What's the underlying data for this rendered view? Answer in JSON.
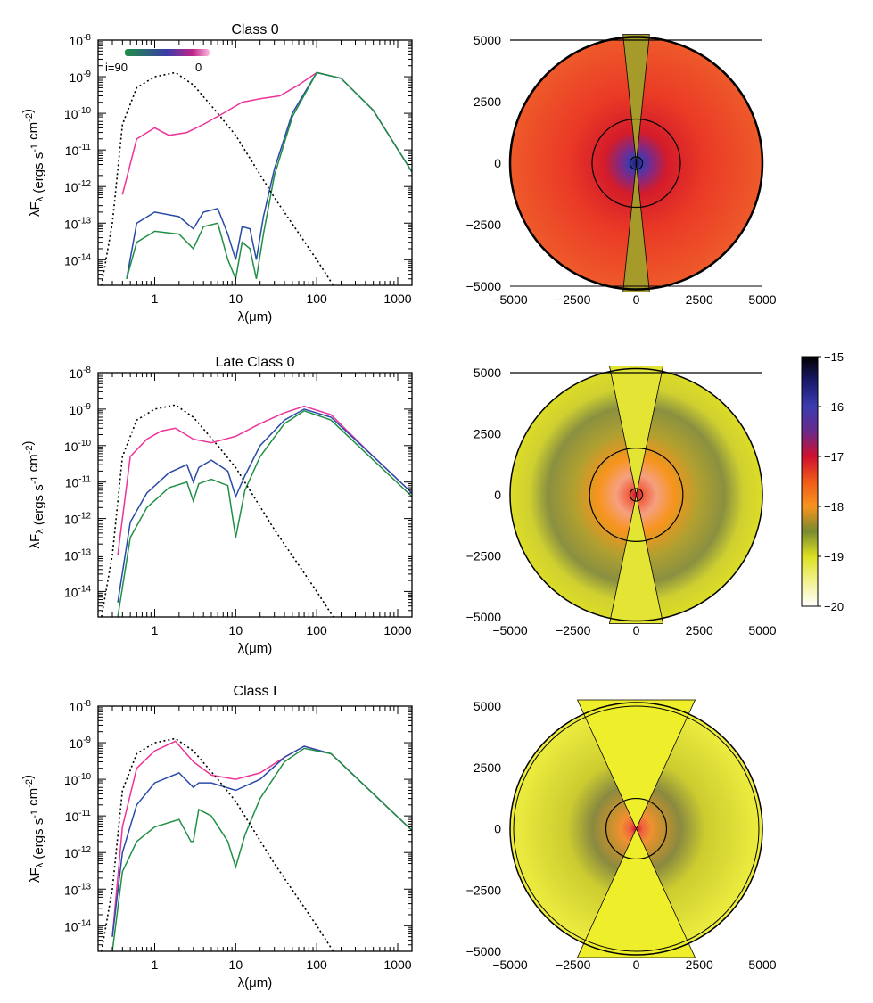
{
  "colors": {
    "pink": "#ee3399",
    "blue": "#2a4aa8",
    "green": "#1f8f45",
    "star": "#000000",
    "density_high": "#000000",
    "density_low": "#ffffff"
  },
  "chart_data": [
    {
      "type": "line",
      "title": "Class 0",
      "xlabel": "λ(μm)",
      "ylabel": "λF_λ (ergs s^-1 cm^-2)",
      "xscale": "log",
      "yscale": "log",
      "xlim": [
        0.2,
        1500
      ],
      "ylim": [
        2e-15,
        1e-08
      ],
      "xticklabels": [
        "1",
        "10",
        "100",
        "1000"
      ],
      "yticklabels": [
        "10^-8",
        "10^-9",
        "10^-10",
        "10^-11",
        "10^-12",
        "10^-13",
        "10^-14"
      ],
      "colorbar": {
        "label_left": "i=90",
        "label_right": "0"
      },
      "series": [
        {
          "color": "#ee3399",
          "x": [
            0.4,
            0.6,
            1.0,
            1.5,
            2.5,
            4.0,
            7.0,
            12.0,
            20.0,
            35.0,
            60.0,
            100.0,
            200.0,
            500.0,
            1500.0
          ],
          "y": [
            6e-13,
            2e-11,
            4e-11,
            2.5e-11,
            3e-11,
            5e-11,
            1e-10,
            2e-10,
            2.5e-10,
            3e-10,
            6e-10,
            1.3e-09,
            9e-10,
            1.2e-10,
            2.5e-12
          ]
        },
        {
          "color": "#2a4aa8",
          "x": [
            0.45,
            0.6,
            1.0,
            2.0,
            3.0,
            4.0,
            6.0,
            8.0,
            10.0,
            12.0,
            15.0,
            18.0,
            22.0,
            30.0,
            50.0,
            100.0,
            200.0,
            500.0,
            1500.0
          ],
          "y": [
            3e-15,
            1e-13,
            2e-13,
            1.5e-13,
            7e-14,
            2e-13,
            2.5e-13,
            5e-14,
            1e-14,
            8e-14,
            7e-14,
            1e-14,
            1.5e-13,
            3e-12,
            1e-10,
            1.3e-09,
            9e-10,
            1.2e-10,
            2.5e-12
          ]
        },
        {
          "color": "#1f8f45",
          "x": [
            0.45,
            0.6,
            1.0,
            2.0,
            3.0,
            4.0,
            6.0,
            8.0,
            10.0,
            12.0,
            15.0,
            18.0,
            22.0,
            30.0,
            50.0,
            100.0,
            200.0,
            500.0,
            1500.0
          ],
          "y": [
            3e-15,
            3e-14,
            6e-14,
            5e-14,
            2e-14,
            8e-14,
            1e-13,
            1e-14,
            3e-15,
            3e-14,
            2e-14,
            3e-15,
            5e-14,
            2e-12,
            8e-11,
            1.3e-09,
            9e-10,
            1.2e-10,
            2.5e-12
          ]
        },
        {
          "color": "#000000",
          "dashed": true,
          "x": [
            0.22,
            0.3,
            0.4,
            0.6,
            1.0,
            1.8,
            3.0,
            6.0,
            10.0,
            30.0,
            100.0,
            160.0
          ],
          "y": [
            2e-15,
            1e-13,
            5e-11,
            5e-10,
            1e-09,
            1.3e-09,
            6e-10,
            1e-10,
            2.5e-11,
            5e-13,
            1e-14,
            2e-15
          ]
        }
      ]
    },
    {
      "type": "line",
      "title": "Late Class 0",
      "xlabel": "λ(μm)",
      "ylabel": "λF_λ (ergs s^-1 cm^-2)",
      "xscale": "log",
      "yscale": "log",
      "xlim": [
        0.2,
        1500
      ],
      "ylim": [
        2e-15,
        1e-08
      ],
      "xticklabels": [
        "1",
        "10",
        "100",
        "1000"
      ],
      "yticklabels": [
        "10^-8",
        "10^-9",
        "10^-10",
        "10^-11",
        "10^-12",
        "10^-13",
        "10^-14"
      ],
      "series": [
        {
          "color": "#ee3399",
          "x": [
            0.35,
            0.5,
            0.8,
            1.2,
            1.8,
            3.0,
            5.0,
            10.0,
            20.0,
            40.0,
            70.0,
            150.0,
            500.0,
            1500.0
          ],
          "y": [
            1e-13,
            5e-11,
            1.5e-10,
            2.5e-10,
            3e-10,
            1.5e-10,
            1.2e-10,
            1.8e-10,
            4e-10,
            8e-10,
            1.2e-09,
            7e-10,
            5e-11,
            5e-12
          ]
        },
        {
          "color": "#2a4aa8",
          "x": [
            0.35,
            0.5,
            0.8,
            1.5,
            2.5,
            3.0,
            3.5,
            5.0,
            8.0,
            10.0,
            13.0,
            20.0,
            40.0,
            70.0,
            150.0,
            500.0,
            1500.0
          ],
          "y": [
            5e-15,
            8e-13,
            5e-12,
            1.8e-11,
            3e-11,
            1e-11,
            2.5e-11,
            4e-11,
            2e-11,
            4e-12,
            1.5e-11,
            1e-10,
            5e-10,
            1e-09,
            6e-10,
            5e-11,
            5e-12
          ]
        },
        {
          "color": "#1f8f45",
          "x": [
            0.35,
            0.5,
            0.8,
            1.5,
            2.5,
            3.0,
            3.5,
            5.0,
            8.0,
            10.0,
            13.0,
            20.0,
            40.0,
            70.0,
            150.0,
            500.0,
            1500.0
          ],
          "y": [
            2e-15,
            3e-13,
            2e-12,
            7e-12,
            1e-11,
            3e-12,
            9e-12,
            1.2e-11,
            8e-12,
            3e-13,
            6e-12,
            5e-11,
            4e-10,
            9e-10,
            5e-10,
            4e-11,
            4e-12
          ]
        },
        {
          "color": "#000000",
          "dashed": true,
          "x": [
            0.22,
            0.3,
            0.4,
            0.6,
            1.0,
            1.8,
            3.0,
            6.0,
            10.0,
            30.0,
            100.0,
            160.0
          ],
          "y": [
            2e-15,
            1e-13,
            5e-11,
            5e-10,
            1e-09,
            1.3e-09,
            6e-10,
            1e-10,
            2.5e-11,
            5e-13,
            1e-14,
            2e-15
          ]
        }
      ]
    },
    {
      "type": "line",
      "title": "Class I",
      "xlabel": "λ(μm)",
      "ylabel": "λF_λ (ergs s^-1 cm^-2)",
      "xscale": "log",
      "yscale": "log",
      "xlim": [
        0.2,
        1500
      ],
      "ylim": [
        2e-15,
        1e-08
      ],
      "xticklabels": [
        "1",
        "10",
        "100",
        "1000"
      ],
      "yticklabels": [
        "10^-8",
        "10^-9",
        "10^-10",
        "10^-11",
        "10^-12",
        "10^-13",
        "10^-14"
      ],
      "series": [
        {
          "color": "#ee3399",
          "x": [
            0.3,
            0.4,
            0.6,
            1.0,
            1.8,
            3.0,
            5.0,
            10.0,
            20.0,
            40.0,
            70.0,
            150.0,
            500.0,
            1500.0
          ],
          "y": [
            5e-15,
            5e-12,
            2e-10,
            6e-10,
            1.1e-09,
            3e-10,
            1.3e-10,
            1e-10,
            1.5e-10,
            4e-10,
            8e-10,
            5e-10,
            4e-11,
            4e-12
          ]
        },
        {
          "color": "#2a4aa8",
          "x": [
            0.3,
            0.4,
            0.6,
            1.0,
            2.0,
            3.0,
            3.5,
            5.0,
            10.0,
            20.0,
            40.0,
            70.0,
            150.0,
            500.0,
            1500.0
          ],
          "y": [
            5e-15,
            1e-12,
            2e-11,
            8e-11,
            1.5e-10,
            6e-11,
            8e-11,
            8e-11,
            5e-11,
            1e-10,
            4e-10,
            8e-10,
            5e-10,
            4e-11,
            4e-12
          ]
        },
        {
          "color": "#1f8f45",
          "x": [
            0.3,
            0.4,
            0.6,
            1.0,
            2.0,
            2.8,
            3.0,
            3.5,
            5.0,
            8.0,
            10.0,
            13.0,
            20.0,
            40.0,
            70.0,
            150.0,
            500.0,
            1500.0
          ],
          "y": [
            2e-15,
            3e-13,
            2e-12,
            5e-12,
            8e-12,
            2e-12,
            2e-12,
            1.5e-11,
            1e-11,
            2e-12,
            4e-13,
            3e-12,
            3e-11,
            3e-10,
            7e-10,
            5e-10,
            4e-11,
            4e-12
          ]
        },
        {
          "color": "#000000",
          "dashed": true,
          "x": [
            0.22,
            0.3,
            0.4,
            0.6,
            1.0,
            1.8,
            3.0,
            6.0,
            10.0,
            30.0,
            100.0,
            160.0
          ],
          "y": [
            2e-15,
            1e-13,
            5e-11,
            5e-10,
            1e-09,
            1.3e-09,
            6e-10,
            1e-10,
            2.5e-11,
            5e-13,
            1e-14,
            2e-15
          ]
        }
      ]
    },
    {
      "type": "heatmap",
      "xlim": [
        -5000,
        5000
      ],
      "ylim": [
        -5000,
        5000
      ],
      "xticklabels": [
        "−5000",
        "−2500",
        "0",
        "2500",
        "5000"
      ],
      "yticklabels": [
        "5000",
        "2500",
        "0",
        "−2500",
        "−5000"
      ],
      "cavity_half_angle_deg": 6,
      "envelope_color": "#e83828",
      "core_color": "#2a2a8c",
      "cavity_color": "#a69a2a",
      "contour_radii": [
        250,
        1750
      ]
    },
    {
      "type": "heatmap",
      "xlim": [
        -5000,
        5000
      ],
      "ylim": [
        -5000,
        5000
      ],
      "xticklabels": [
        "−5000",
        "−2500",
        "0",
        "2500",
        "5000"
      ],
      "yticklabels": [
        "5000",
        "2500",
        "0",
        "−2500",
        "−5000"
      ],
      "cavity_half_angle_deg": 12,
      "envelope_color": "#d8dc20",
      "core_color": "#e02020",
      "cavity_color": "#e4e434",
      "contour_radii": [
        250,
        1850
      ]
    },
    {
      "type": "heatmap",
      "xlim": [
        -5000,
        5000
      ],
      "ylim": [
        -5000,
        5000
      ],
      "xticklabels": [
        "−5000",
        "−2500",
        "0",
        "2500",
        "5000"
      ],
      "yticklabels": [
        "5000",
        "2500",
        "0",
        "−2500",
        "−5000"
      ],
      "cavity_half_angle_deg": 25,
      "envelope_color": "#ecec3a",
      "core_color": "#e02020",
      "cavity_color": "#eeee2a",
      "contour_radii": [
        1200
      ]
    },
    {
      "type": "colorbar",
      "ticklabels": [
        "−15",
        "−16",
        "−17",
        "−18",
        "−19",
        "−20"
      ],
      "range": [
        -20,
        -15
      ]
    }
  ]
}
